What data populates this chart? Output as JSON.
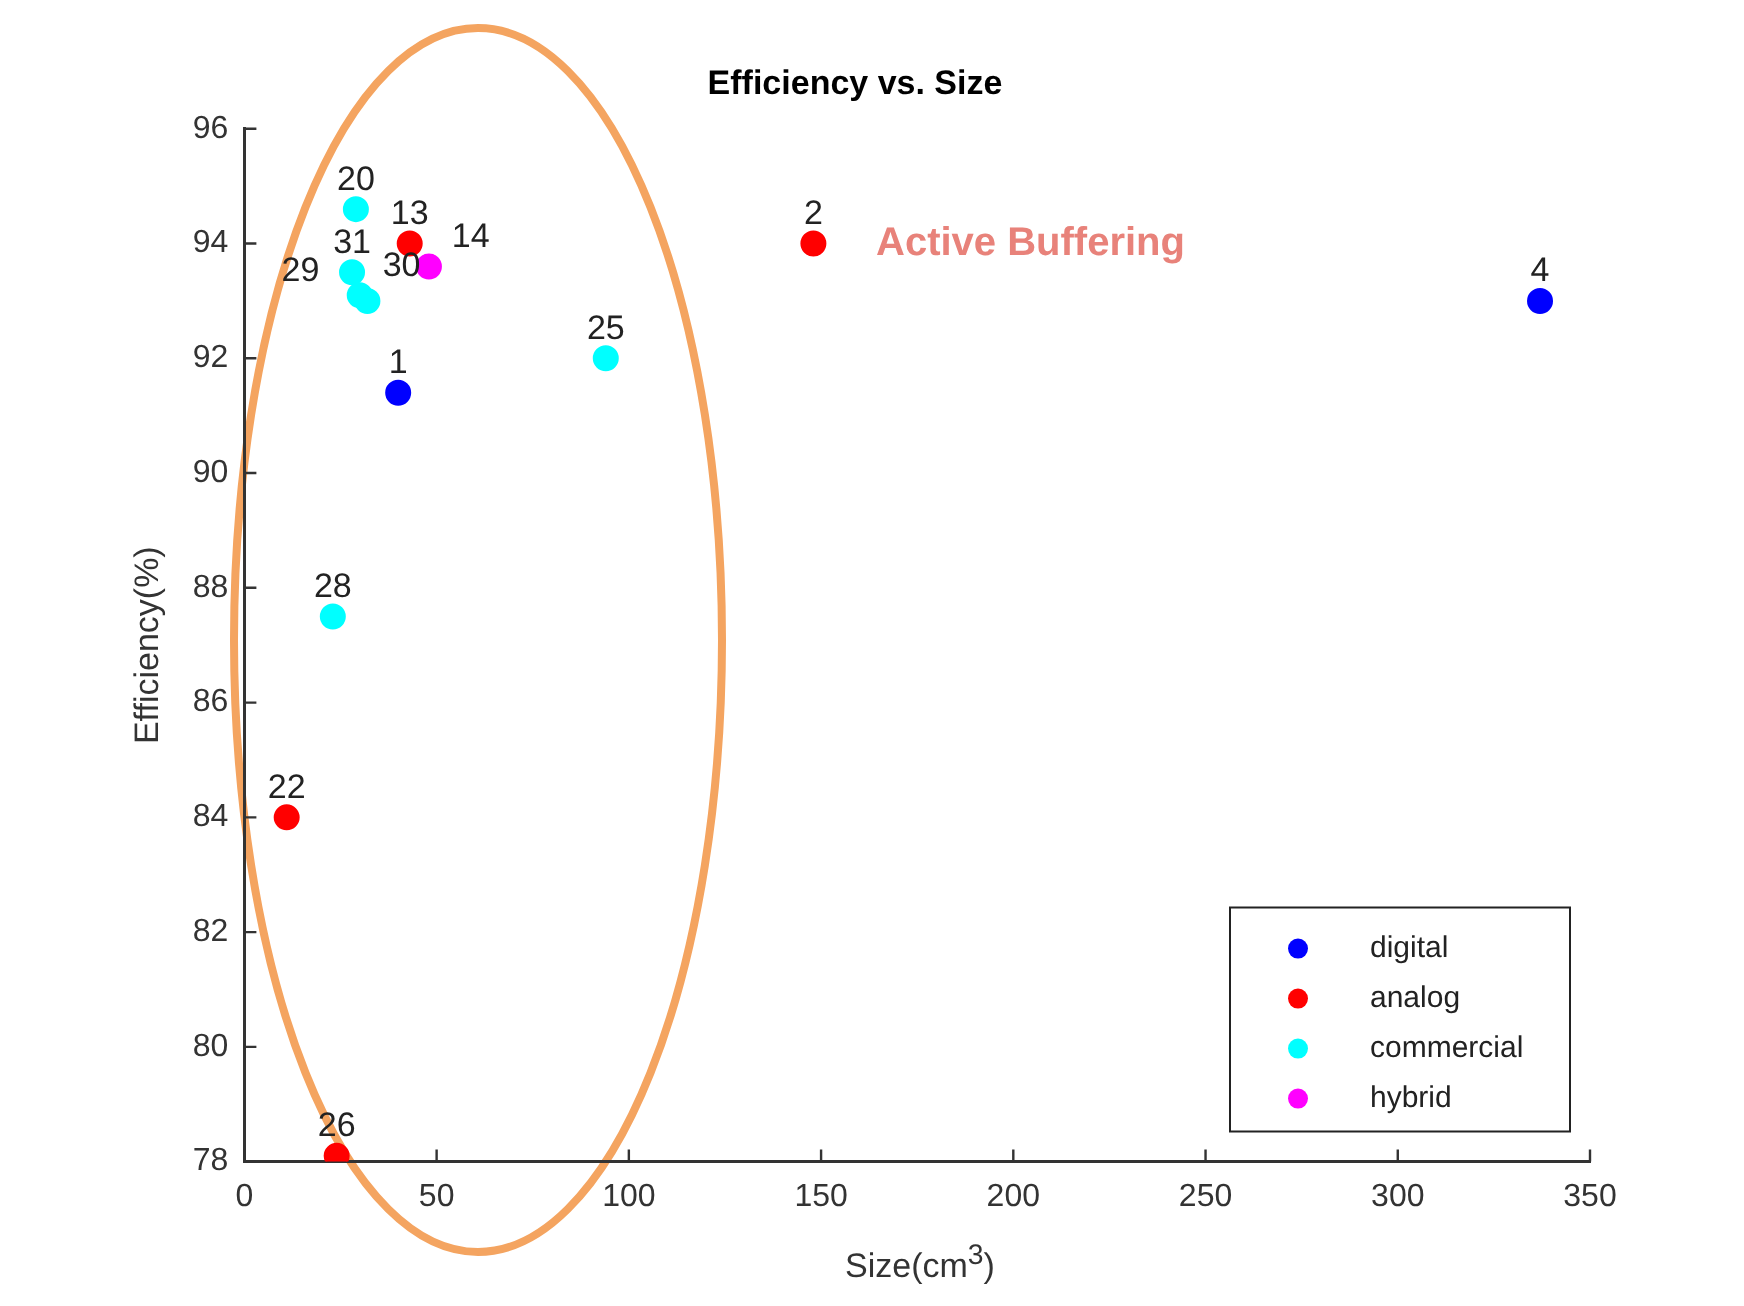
{
  "chart_data": {
    "type": "scatter",
    "title": "Efficiency vs. Size",
    "xlabel": "Size(cm$^{3}$)",
    "ylabel": "Efficiency(%)",
    "xlim": [
      0,
      350
    ],
    "xticks": [
      0,
      50,
      100,
      150,
      200,
      250,
      300,
      350
    ],
    "ylim": [
      78,
      96
    ],
    "yticks": [
      78,
      80,
      82,
      84,
      86,
      88,
      90,
      92,
      94,
      96
    ],
    "grid": false,
    "legend": "bottom right",
    "marker": "circle",
    "annotations": [
      "Active Buffering",
      {
        "text": "1",
        "x": 40,
        "y": 91.4
      },
      {
        "text": "4",
        "x": 337,
        "y": 93
      },
      {
        "text": "13",
        "x": 43,
        "y": 94
      },
      {
        "text": "2",
        "x": 148,
        "y": 94
      },
      {
        "text": "22",
        "x": 11,
        "y": 84
      },
      {
        "text": "26",
        "x": 24,
        "y": 78.1
      },
      {
        "text": "20",
        "x": 29,
        "y": 94.6
      },
      {
        "text": "25",
        "x": 94,
        "y": 92
      },
      {
        "text": "28",
        "x": 23,
        "y": 87.5
      },
      {
        "text": "31",
        "x": 28,
        "y": 93.5
      },
      {
        "text": "30",
        "x": 30,
        "y": 93.1
      },
      {
        "text": "29",
        "x": 32,
        "y": 93
      },
      {
        "text": "14",
        "x": 48,
        "y": 93.6
      }
    ],
    "series": [
      {
        "name": "digital",
        "color": "#0000ff",
        "x": [
          40,
          337
        ],
        "values": [
          91.4,
          93
        ]
      },
      {
        "name": "analog",
        "color": "#ff0000",
        "x": [
          43,
          148,
          11,
          24
        ],
        "values": [
          94,
          94,
          84,
          78.1
        ]
      },
      {
        "name": "commercial",
        "color": "#00ffff",
        "x": [
          29,
          94,
          23,
          28,
          30,
          32
        ],
        "values": [
          94.6,
          92,
          87.5,
          93.5,
          93.1,
          93
        ]
      },
      {
        "name": "hybrid",
        "color": "#ff00ff",
        "x": [
          48
        ],
        "values": [
          93.6
        ]
      }
    ]
  }
}
